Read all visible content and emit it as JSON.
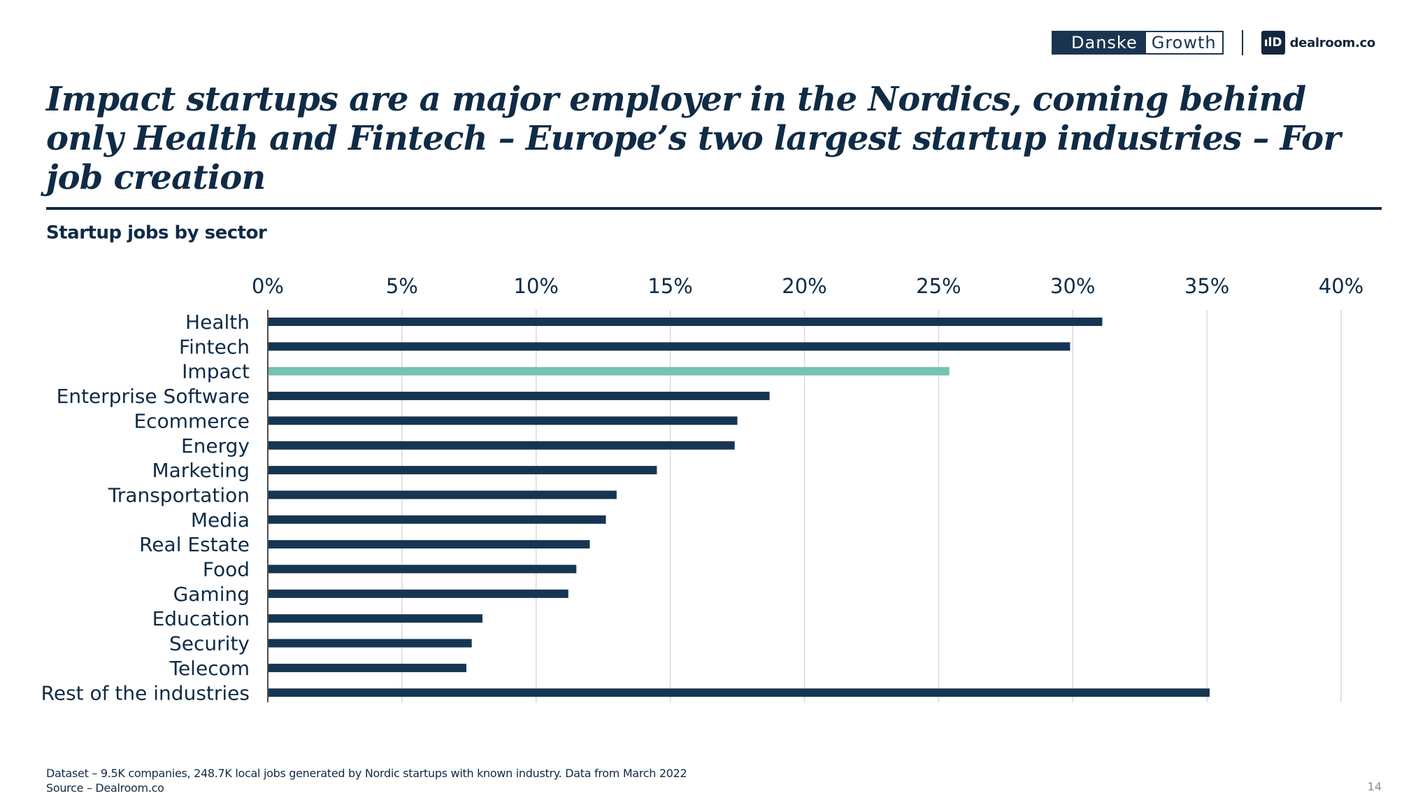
{
  "brand": {
    "danske": "Danske",
    "growth": "Growth",
    "dealroom_icon": "ılD",
    "dealroom": "dealroom.co"
  },
  "title": "Impact startups are a major employer in the Nordics, coming behind only Health and Fintech – Europe’s two largest startup industries – For job creation",
  "chart_data": {
    "type": "bar",
    "orientation": "horizontal",
    "title": "Startup jobs by sector",
    "categories": [
      "Health",
      "Fintech",
      "Impact",
      "Enterprise Software",
      "Ecommerce",
      "Energy",
      "Marketing",
      "Transportation",
      "Media",
      "Real Estate",
      "Food",
      "Gaming",
      "Education",
      "Security",
      "Telecom",
      "Rest of the industries"
    ],
    "values": [
      31.1,
      29.9,
      25.4,
      18.7,
      17.5,
      17.4,
      14.5,
      13.0,
      12.6,
      12.0,
      11.5,
      11.2,
      8.0,
      7.6,
      7.4,
      35.1
    ],
    "unit": "%",
    "xlim": [
      0,
      40
    ],
    "ticks": [
      0,
      5,
      10,
      15,
      20,
      25,
      30,
      35,
      40
    ],
    "tick_labels": [
      "0%",
      "5%",
      "10%",
      "15%",
      "20%",
      "25%",
      "30%",
      "35%",
      "40%"
    ],
    "grid": true,
    "axis_position": "top",
    "highlight_category": "Impact",
    "colors": {
      "bar": "#163552",
      "highlight": "#74c3ae",
      "grid": "#d9d9d9",
      "axis": "#4d4d4d",
      "text": "#0f2b46"
    }
  },
  "footnote": {
    "dataset": "Dataset – 9.5K companies, 248.7K local jobs generated  by Nordic startups with known industry. Data from March 2022",
    "source": "Source – Dealroom.co"
  },
  "page_number": "14"
}
